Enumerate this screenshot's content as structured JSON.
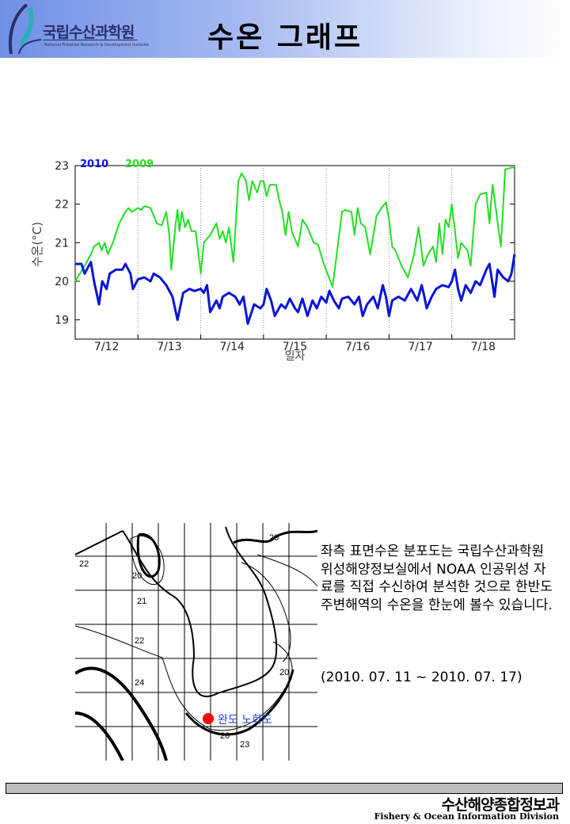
{
  "header": {
    "logo_ko": "국립수산과학원",
    "logo_en": "National Fisheries Research & Development Institute",
    "title": "수온 그래프"
  },
  "chart_data": {
    "type": "line",
    "title": "",
    "xlabel": "일자",
    "ylabel": "수온(°C)",
    "ylim": [
      18.5,
      23
    ],
    "xlim": [
      12,
      19
    ],
    "yticks": [
      19,
      20,
      21,
      22,
      23
    ],
    "xtick_labels": [
      "7/12",
      "7/13",
      "7/14",
      "7/15",
      "7/16",
      "7/17",
      "7/18"
    ],
    "grid": "vertical dotted day separators",
    "legend_placement": "top-left",
    "series": [
      {
        "name": "2010",
        "color": "#0a14d8",
        "x": [
          12.0,
          12.1,
          12.15,
          12.25,
          12.3,
          12.38,
          12.43,
          12.5,
          12.55,
          12.65,
          12.75,
          12.8,
          12.88,
          12.92,
          13.0,
          13.1,
          13.2,
          13.25,
          13.35,
          13.45,
          13.55,
          13.63,
          13.72,
          13.82,
          13.9,
          14.0,
          14.05,
          14.1,
          14.15,
          14.25,
          14.3,
          14.35,
          14.45,
          14.55,
          14.62,
          14.68,
          14.75,
          14.85,
          14.95,
          15.0,
          15.05,
          15.12,
          15.18,
          15.28,
          15.35,
          15.42,
          15.5,
          15.55,
          15.62,
          15.7,
          15.78,
          15.85,
          15.92,
          16.0,
          16.05,
          16.12,
          16.2,
          16.25,
          16.35,
          16.45,
          16.52,
          16.58,
          16.65,
          16.75,
          16.82,
          16.9,
          16.95,
          17.0,
          17.05,
          17.15,
          17.25,
          17.35,
          17.45,
          17.52,
          17.55,
          17.6,
          17.68,
          17.75,
          17.85,
          17.95,
          18.0,
          18.05,
          18.1,
          18.15,
          18.22,
          18.3,
          18.38,
          18.45,
          18.55,
          18.6,
          18.68,
          18.73,
          18.82,
          18.9,
          18.95,
          19.0
        ],
        "y": [
          20.45,
          20.45,
          20.2,
          20.5,
          20.0,
          19.4,
          20.0,
          19.8,
          20.2,
          20.3,
          20.3,
          20.45,
          20.2,
          19.8,
          20.05,
          20.1,
          20.0,
          20.2,
          20.1,
          19.9,
          19.6,
          19.0,
          19.7,
          19.8,
          19.75,
          19.8,
          19.7,
          19.9,
          19.2,
          19.5,
          19.3,
          19.6,
          19.7,
          19.6,
          19.4,
          19.6,
          18.9,
          19.4,
          19.3,
          19.4,
          19.8,
          19.5,
          19.1,
          19.4,
          19.3,
          19.55,
          19.3,
          19.2,
          19.55,
          19.1,
          19.5,
          19.3,
          19.6,
          19.45,
          19.75,
          19.5,
          19.3,
          19.55,
          19.6,
          19.4,
          19.6,
          19.1,
          19.4,
          19.6,
          19.3,
          19.9,
          19.6,
          19.1,
          19.5,
          19.6,
          19.5,
          19.8,
          19.5,
          19.9,
          19.7,
          19.3,
          19.6,
          19.8,
          19.9,
          19.85,
          20.0,
          20.3,
          19.8,
          19.5,
          19.9,
          19.7,
          20.0,
          19.9,
          20.3,
          20.45,
          19.6,
          20.3,
          20.1,
          20.0,
          20.2,
          20.7
        ]
      },
      {
        "name": "2009",
        "color": "#22e022",
        "x": [
          12.0,
          12.15,
          12.25,
          12.3,
          12.38,
          12.42,
          12.47,
          12.52,
          12.6,
          12.7,
          12.8,
          12.85,
          12.9,
          12.95,
          13.0,
          13.05,
          13.1,
          13.2,
          13.25,
          13.3,
          13.38,
          13.45,
          13.5,
          13.53,
          13.6,
          13.63,
          13.66,
          13.7,
          13.75,
          13.8,
          13.85,
          13.92,
          14.0,
          14.05,
          14.15,
          14.25,
          14.3,
          14.35,
          14.4,
          14.45,
          14.52,
          14.6,
          14.65,
          14.72,
          14.77,
          14.82,
          14.9,
          14.95,
          15.0,
          15.05,
          15.1,
          15.2,
          15.25,
          15.3,
          15.35,
          15.4,
          15.45,
          15.55,
          15.62,
          15.7,
          15.8,
          15.87,
          15.95,
          16.1,
          16.25,
          16.3,
          16.4,
          16.45,
          16.5,
          16.55,
          16.62,
          16.7,
          16.8,
          16.88,
          16.95,
          17.0,
          17.05,
          17.1,
          17.2,
          17.3,
          17.4,
          17.47,
          17.55,
          17.62,
          17.7,
          17.75,
          17.8,
          17.85,
          17.9,
          17.95,
          18.0,
          18.05,
          18.1,
          18.15,
          18.25,
          18.3,
          18.38,
          18.45,
          18.55,
          18.6,
          18.65,
          18.7,
          18.78,
          18.85,
          18.95,
          19.0
        ],
        "y": [
          20.0,
          20.4,
          20.7,
          20.9,
          21.0,
          20.8,
          21.0,
          20.7,
          21.0,
          21.5,
          21.8,
          21.9,
          21.8,
          21.85,
          21.9,
          21.85,
          21.95,
          21.9,
          21.7,
          21.5,
          21.45,
          21.8,
          21.2,
          20.3,
          21.5,
          21.85,
          21.3,
          21.8,
          21.4,
          21.6,
          21.3,
          21.3,
          20.2,
          21.0,
          21.2,
          21.5,
          21.1,
          21.3,
          21.0,
          21.4,
          20.5,
          22.6,
          22.8,
          22.6,
          22.1,
          22.6,
          22.3,
          22.6,
          22.6,
          22.2,
          22.5,
          22.5,
          22.1,
          21.8,
          21.2,
          21.8,
          21.3,
          20.9,
          21.6,
          21.4,
          21.0,
          20.95,
          20.5,
          19.85,
          21.8,
          21.85,
          21.8,
          21.2,
          21.9,
          21.5,
          21.4,
          20.7,
          21.7,
          21.9,
          22.05,
          21.6,
          20.9,
          20.8,
          20.4,
          20.1,
          20.7,
          21.4,
          20.4,
          20.7,
          20.9,
          20.5,
          21.5,
          20.7,
          21.6,
          21.4,
          22.0,
          21.3,
          20.6,
          21.0,
          20.8,
          20.4,
          22.0,
          22.25,
          22.3,
          21.5,
          22.5,
          21.9,
          20.9,
          22.9,
          22.95,
          22.95
        ]
      }
    ]
  },
  "map": {
    "location_label": "완도 노화도",
    "contour_labels": [
      "20",
      "22",
      "20",
      "21",
      "22",
      "24",
      "20",
      "20",
      "23"
    ]
  },
  "description": {
    "text": "좌측 표면수온 분포도는 국립수산과학원 위성해양정보실에서 NOAA 인공위성 자료를 직접 수신하여 분석한 것으로  한반도 주변해역의 수온을 한눈에 볼수 있습니다.",
    "period": "(2010. 07. 11 ~ 2010. 07. 17)"
  },
  "footer": {
    "division_ko": "수산해양종합정보과",
    "division_en": "Fishery & Ocean Information Division"
  }
}
